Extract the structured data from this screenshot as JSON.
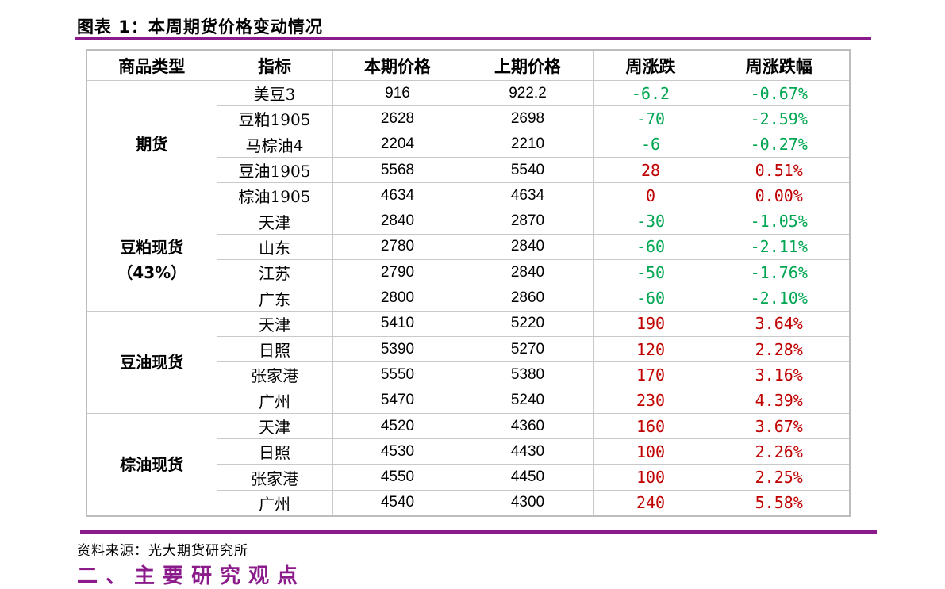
{
  "figure_title": "图表 1：本周期货价格变动情况",
  "headers": [
    "商品类型",
    "指标",
    "本期价格",
    "上期价格",
    "周涨跌",
    "周涨跌幅"
  ],
  "groups": [
    {
      "category_lines": [
        "期货"
      ],
      "rows": [
        {
          "name": "美豆3",
          "current": "916",
          "previous": "922.2",
          "change": "-6.2",
          "pct": "-0.67%",
          "direction": "down"
        },
        {
          "name": "豆粕1905",
          "current": "2628",
          "previous": "2698",
          "change": "-70",
          "pct": "-2.59%",
          "direction": "down"
        },
        {
          "name": "马棕油4",
          "current": "2204",
          "previous": "2210",
          "change": "-6",
          "pct": "-0.27%",
          "direction": "down"
        },
        {
          "name": "豆油1905",
          "current": "5568",
          "previous": "5540",
          "change": "28",
          "pct": "0.51%",
          "direction": "up"
        },
        {
          "name": "棕油1905",
          "current": "4634",
          "previous": "4634",
          "change": "0",
          "pct": "0.00%",
          "direction": "up"
        }
      ]
    },
    {
      "category_lines": [
        "豆粕现货",
        "（43%）"
      ],
      "rows": [
        {
          "name": "天津",
          "current": "2840",
          "previous": "2870",
          "change": "-30",
          "pct": "-1.05%",
          "direction": "down"
        },
        {
          "name": "山东",
          "current": "2780",
          "previous": "2840",
          "change": "-60",
          "pct": "-2.11%",
          "direction": "down"
        },
        {
          "name": "江苏",
          "current": "2790",
          "previous": "2840",
          "change": "-50",
          "pct": "-1.76%",
          "direction": "down"
        },
        {
          "name": "广东",
          "current": "2800",
          "previous": "2860",
          "change": "-60",
          "pct": "-2.10%",
          "direction": "down"
        }
      ]
    },
    {
      "category_lines": [
        "豆油现货"
      ],
      "rows": [
        {
          "name": "天津",
          "current": "5410",
          "previous": "5220",
          "change": "190",
          "pct": "3.64%",
          "direction": "up"
        },
        {
          "name": "日照",
          "current": "5390",
          "previous": "5270",
          "change": "120",
          "pct": "2.28%",
          "direction": "up"
        },
        {
          "name": "张家港",
          "current": "5550",
          "previous": "5380",
          "change": "170",
          "pct": "3.16%",
          "direction": "up"
        },
        {
          "name": "广州",
          "current": "5470",
          "previous": "5240",
          "change": "230",
          "pct": "4.39%",
          "direction": "up"
        }
      ]
    },
    {
      "category_lines": [
        "棕油现货"
      ],
      "rows": [
        {
          "name": "天津",
          "current": "4520",
          "previous": "4360",
          "change": "160",
          "pct": "3.67%",
          "direction": "up"
        },
        {
          "name": "日照",
          "current": "4530",
          "previous": "4430",
          "change": "100",
          "pct": "2.26%",
          "direction": "up"
        },
        {
          "name": "张家港",
          "current": "4550",
          "previous": "4450",
          "change": "100",
          "pct": "2.25%",
          "direction": "up"
        },
        {
          "name": "广州",
          "current": "4540",
          "previous": "4300",
          "change": "240",
          "pct": "5.58%",
          "direction": "up"
        }
      ]
    }
  ],
  "colors": {
    "up": "#c00000",
    "down": "#00a651",
    "accent": "#8b1a8b"
  },
  "source": "资料来源：光大期货研究所",
  "next_heading": "二、主要研究观点"
}
